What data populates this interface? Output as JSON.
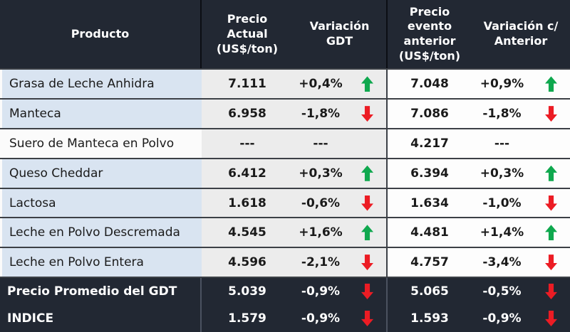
{
  "header": {
    "producto": "Producto",
    "precio_actual": "Precio Actual (US$/ton)",
    "variacion_gdt": "Variación GDT",
    "precio_anterior": "Precio evento anterior (US$/ton)",
    "variacion_anterior": "Variación c/ Anterior"
  },
  "rows": [
    {
      "producto": "Grasa de Leche Anhidra",
      "product_style": "blue",
      "precio_actual": "7.111",
      "variacion_gdt": "+0,4%",
      "variacion_gdt_dir": "up",
      "precio_anterior": "7.048",
      "variacion_anterior": "+0,9%",
      "variacion_anterior_dir": "up"
    },
    {
      "producto": "Manteca",
      "product_style": "blue",
      "precio_actual": "6.958",
      "variacion_gdt": "-1,8%",
      "variacion_gdt_dir": "down",
      "precio_anterior": "7.086",
      "variacion_anterior": "-1,8%",
      "variacion_anterior_dir": "down"
    },
    {
      "producto": "Suero de Manteca en Polvo",
      "product_style": "white",
      "precio_actual": "---",
      "variacion_gdt": "---",
      "variacion_gdt_dir": "none",
      "precio_anterior": "4.217",
      "variacion_anterior": "---",
      "variacion_anterior_dir": "none"
    },
    {
      "producto": "Queso Cheddar",
      "product_style": "blue",
      "precio_actual": "6.412",
      "variacion_gdt": "+0,3%",
      "variacion_gdt_dir": "up",
      "precio_anterior": "6.394",
      "variacion_anterior": "+0,3%",
      "variacion_anterior_dir": "up"
    },
    {
      "producto": "Lactosa",
      "product_style": "blue",
      "precio_actual": "1.618",
      "variacion_gdt": "-0,6%",
      "variacion_gdt_dir": "down",
      "precio_anterior": "1.634",
      "variacion_anterior": "-1,0%",
      "variacion_anterior_dir": "down"
    },
    {
      "producto": "Leche en Polvo Descremada",
      "product_style": "blue",
      "precio_actual": "4.545",
      "variacion_gdt": "+1,6%",
      "variacion_gdt_dir": "up",
      "precio_anterior": "4.481",
      "variacion_anterior": "+1,4%",
      "variacion_anterior_dir": "up"
    },
    {
      "producto": "Leche en Polvo Entera",
      "product_style": "blue",
      "precio_actual": "4.596",
      "variacion_gdt": "-2,1%",
      "variacion_gdt_dir": "down",
      "precio_anterior": "4.757",
      "variacion_anterior": "-3,4%",
      "variacion_anterior_dir": "down"
    }
  ],
  "footer_rows": [
    {
      "producto": "Precio Promedio del GDT",
      "precio_actual": "5.039",
      "variacion_gdt": "-0,9%",
      "variacion_gdt_dir": "down",
      "precio_anterior": "5.065",
      "variacion_anterior": "-0,5%",
      "variacion_anterior_dir": "down"
    },
    {
      "producto": "INDICE",
      "precio_actual": "1.579",
      "variacion_gdt": "-0,9%",
      "variacion_gdt_dir": "down",
      "precio_anterior": "1.593",
      "variacion_anterior": "-0,9%",
      "variacion_anterior_dir": "down"
    }
  ],
  "colors": {
    "header_bg": "#222833",
    "product_row_blue": "#d9e4f1",
    "current_section_gray": "#ececec",
    "previous_section_white": "#fdfdfd",
    "up_arrow_green": "#0fa84e",
    "down_arrow_red": "#ec1c24"
  },
  "chart_data": {
    "type": "table",
    "title": "GDT dairy auction prices",
    "columns": [
      "Producto",
      "Precio Actual (US$/ton)",
      "Variación GDT",
      "Precio evento anterior (US$/ton)",
      "Variación c/ Anterior"
    ],
    "rows": [
      [
        "Grasa de Leche Anhidra",
        "7.111",
        "+0,4% up",
        "7.048",
        "+0,9% up"
      ],
      [
        "Manteca",
        "6.958",
        "-1,8% down",
        "7.086",
        "-1,8% down"
      ],
      [
        "Suero de Manteca en Polvo",
        "---",
        "---",
        "4.217",
        "---"
      ],
      [
        "Queso Cheddar",
        "6.412",
        "+0,3% up",
        "6.394",
        "+0,3% up"
      ],
      [
        "Lactosa",
        "1.618",
        "-0,6% down",
        "1.634",
        "-1,0% down"
      ],
      [
        "Leche en Polvo Descremada",
        "4.545",
        "+1,6% up",
        "4.481",
        "+1,4% up"
      ],
      [
        "Leche en Polvo Entera",
        "4.596",
        "-2,1% down",
        "4.757",
        "-3,4% down"
      ],
      [
        "Precio Promedio del GDT",
        "5.039",
        "-0,9% down",
        "5.065",
        "-0,5% down"
      ],
      [
        "INDICE",
        "1.579",
        "-0,9% down",
        "1.593",
        "-0,9% down"
      ]
    ]
  }
}
